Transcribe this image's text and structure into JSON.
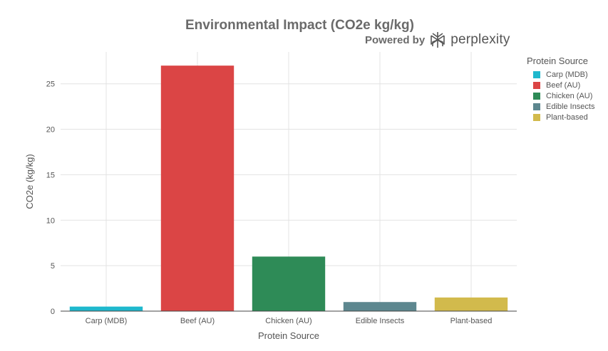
{
  "chart_data": {
    "type": "bar",
    "title": "Environmental Impact (CO2e kg/kg)",
    "xlabel": "Protein Source",
    "ylabel": "CO2e (kg/kg)",
    "categories": [
      "Carp (MDB)",
      "Beef (AU)",
      "Chicken (AU)",
      "Edible Insects",
      "Plant-based"
    ],
    "values": [
      0.5,
      27,
      6,
      1,
      1.5
    ],
    "colors": [
      "#1fb8cd",
      "#db4545",
      "#2e8b57",
      "#5d878f",
      "#d2ba4c"
    ],
    "ylim": [
      0,
      28.5
    ],
    "yticks": [
      0,
      5,
      10,
      15,
      20,
      25
    ],
    "grid": true,
    "legend": {
      "title": "Protein Source",
      "placement": "right",
      "entries": [
        "Carp (MDB)",
        "Beef (AU)",
        "Chicken (AU)",
        "Edible Insects",
        "Plant-based"
      ]
    }
  },
  "branding": {
    "powered_by": "Powered by",
    "brand_name": "perplexity",
    "logo_icon": "perplexity-logo-icon"
  }
}
